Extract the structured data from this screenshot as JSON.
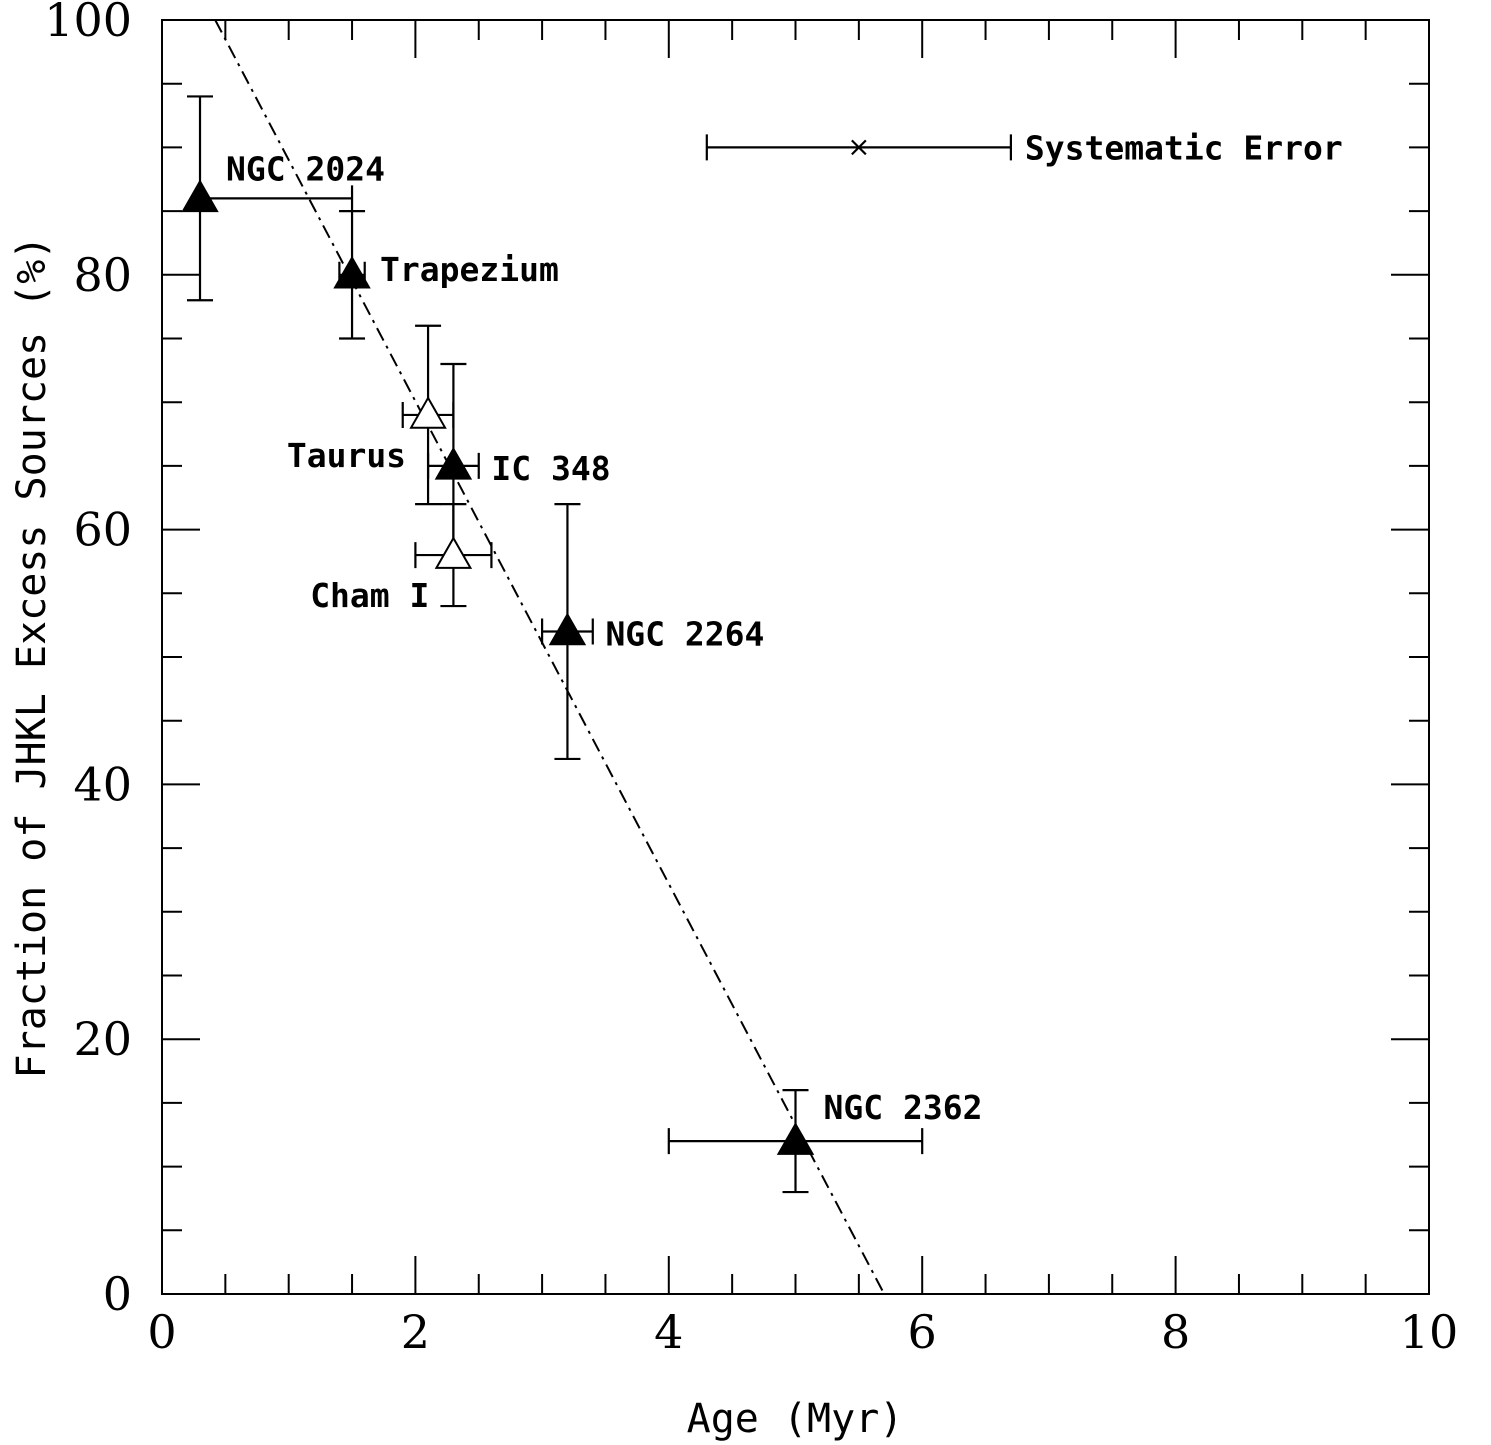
{
  "chart_data": {
    "type": "scatter",
    "xlabel": "Age (Myr)",
    "ylabel": "Fraction of JHKL Excess Sources (%)",
    "xlim": [
      0,
      10
    ],
    "ylim": [
      0,
      100
    ],
    "x_ticks": [
      "0",
      "2",
      "4",
      "6",
      "8",
      "10"
    ],
    "y_ticks": [
      "0",
      "20",
      "40",
      "60",
      "80",
      "100"
    ],
    "grid": false,
    "series": [
      {
        "marker": "filled-triangle",
        "points": [
          {
            "label": "NGC 2024",
            "x": 0.3,
            "y": 86,
            "xerr": [
              0.3,
              1.5
            ],
            "yerr": [
              78,
              94
            ]
          },
          {
            "label": "Trapezium",
            "x": 1.5,
            "y": 80,
            "xerr": [
              1.4,
              1.6
            ],
            "yerr": [
              75,
              85
            ]
          },
          {
            "label": "IC 348",
            "x": 2.3,
            "y": 65,
            "xerr": [
              2.1,
              2.5
            ],
            "yerr": [
              58,
              73
            ]
          },
          {
            "label": "NGC 2264",
            "x": 3.2,
            "y": 52,
            "xerr": [
              3.0,
              3.4
            ],
            "yerr": [
              42,
              62
            ]
          },
          {
            "label": "NGC 2362",
            "x": 5.0,
            "y": 12,
            "xerr": [
              4.0,
              6.0
            ],
            "yerr": [
              8,
              16
            ]
          }
        ]
      },
      {
        "marker": "open-triangle",
        "points": [
          {
            "label": "Taurus",
            "x": 2.1,
            "y": 69,
            "xerr": [
              1.9,
              2.3
            ],
            "yerr": [
              62,
              76
            ]
          },
          {
            "label": "Cham I",
            "x": 2.3,
            "y": 58,
            "xerr": [
              2.0,
              2.6
            ],
            "yerr": [
              54,
              62
            ]
          }
        ]
      }
    ],
    "systematic_error": {
      "label": "Systematic Error",
      "x": 5.5,
      "y": 90,
      "xerr": [
        4.3,
        6.7
      ]
    },
    "fit_line": {
      "style": "dash-dot",
      "x": [
        0.42,
        5.7
      ],
      "y": [
        100,
        0
      ]
    }
  }
}
